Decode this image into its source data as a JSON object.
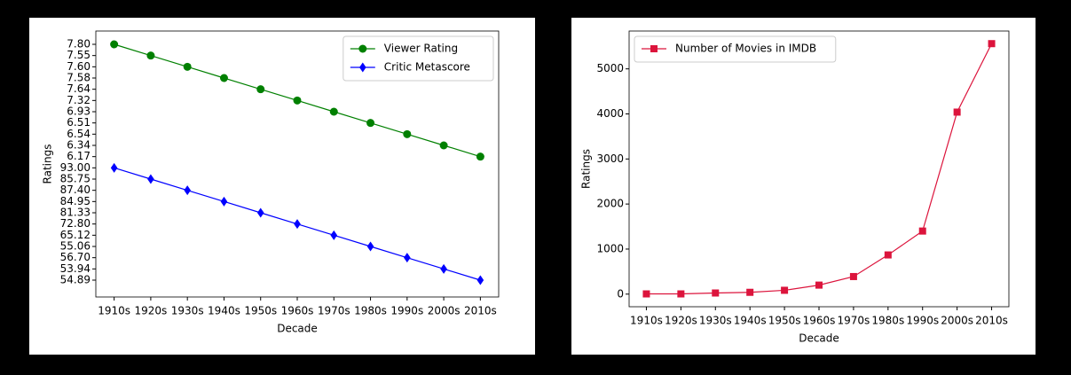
{
  "chart_data": [
    {
      "type": "line",
      "x_label": "Decade",
      "y_label": "Ratings",
      "y_scale": "category",
      "y_inverted": true,
      "legend": "upper right",
      "categories": [
        "1910s",
        "1920s",
        "1930s",
        "1940s",
        "1950s",
        "1960s",
        "1970s",
        "1980s",
        "1990s",
        "2000s",
        "2010s"
      ],
      "yticks": [
        {
          "value": 7.8,
          "label": "7.80"
        },
        7.55,
        {
          "value": 7.6,
          "label": "7.60"
        },
        7.58,
        7.64,
        7.32,
        6.93,
        6.51,
        6.54,
        6.34,
        6.17,
        {
          "value": 93,
          "label": "93.00"
        },
        85.75,
        {
          "value": 87.4,
          "label": "87.40"
        },
        84.95,
        81.33,
        {
          "value": 72.8,
          "label": "72.80"
        },
        65.12,
        55.06,
        {
          "value": 56.7,
          "label": "56.70"
        },
        53.94,
        54.89
      ],
      "series": [
        {
          "name": "Viewer Rating",
          "color": "#008000",
          "marker": "circle",
          "values": [
            7.8,
            7.55,
            7.6,
            7.58,
            7.64,
            7.32,
            6.93,
            6.51,
            6.54,
            6.34,
            6.17
          ]
        },
        {
          "name": "Critic Metascore",
          "color": "#0000ff",
          "marker": "diamond",
          "values": [
            93,
            85.75,
            87.4,
            84.95,
            81.33,
            72.8,
            65.12,
            55.06,
            56.7,
            53.94,
            54.89
          ]
        }
      ]
    },
    {
      "type": "line",
      "x_label": "Decade",
      "y_label": "Ratings",
      "legend": "upper left",
      "categories": [
        "1910s",
        "1920s",
        "1930s",
        "1940s",
        "1950s",
        "1960s",
        "1970s",
        "1980s",
        "1990s",
        "2000s",
        "2010s"
      ],
      "ylim": [
        -280,
        5840
      ],
      "yticks": [
        0,
        1000,
        2000,
        3000,
        4000,
        5000
      ],
      "series": [
        {
          "name": "Number of Movies in IMDB",
          "color": "#dc143c",
          "marker": "square",
          "values": [
            5,
            5,
            25,
            40,
            85,
            200,
            390,
            870,
            1400,
            4040,
            5560
          ]
        }
      ]
    }
  ]
}
